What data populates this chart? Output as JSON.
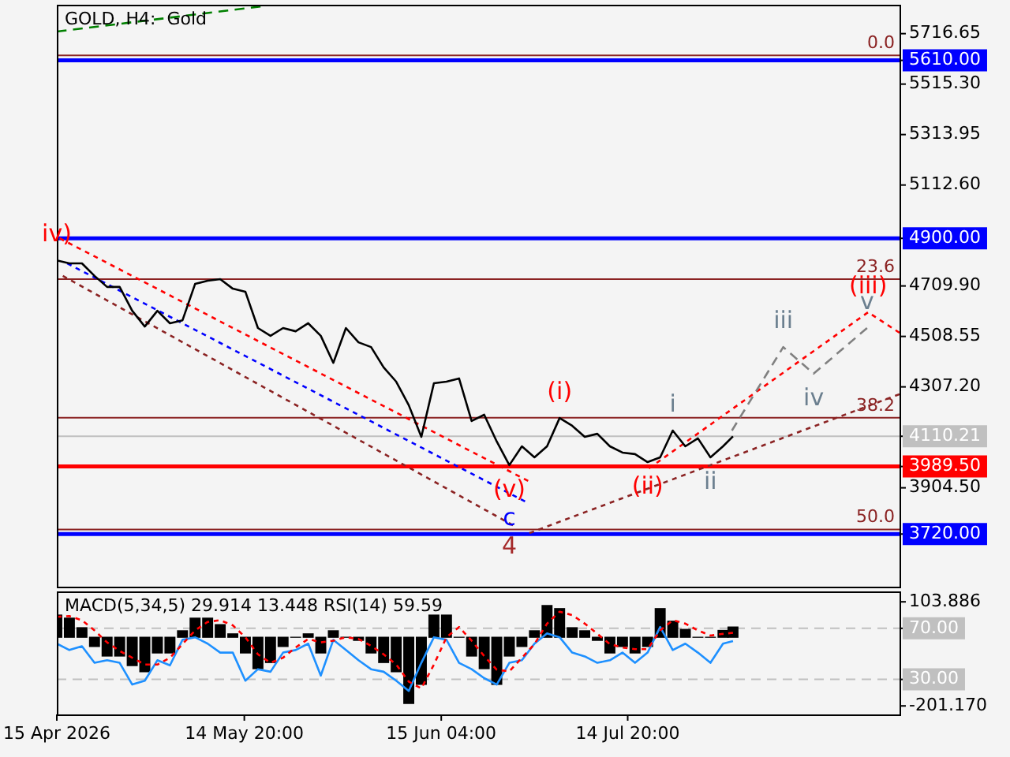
{
  "chart_data": [
    {
      "type": "line",
      "title": "GOLD, H4:  Gold",
      "marker": "none",
      "grid": false,
      "legend": false,
      "tick_labels": "y",
      "xlim": [
        "2026-04-15T00:00",
        "2026-08-27T02:00"
      ],
      "ylim": [
        3510,
        5832
      ],
      "yticks": [
        5716.65,
        {
          "value": 5610,
          "label": "5610.00"
        },
        {
          "value": 5515.3,
          "label": "5515.30"
        },
        5313.95,
        {
          "value": 5112.6,
          "label": "5112.60"
        },
        {
          "value": 4900,
          "label": "4900.00"
        },
        {
          "value": 4709.9,
          "label": "4709.90"
        },
        4508.55,
        {
          "value": 4307.2,
          "label": "4307.20"
        },
        4110.21,
        {
          "value": 3989.5,
          "label": "3989.50"
        },
        {
          "value": 3904.5,
          "label": "3904.50"
        },
        {
          "value": 3720,
          "label": "3720.00"
        }
      ],
      "x": [
        "2026-04-15",
        "2026-04-17",
        "2026-04-19",
        "2026-04-21",
        "2026-04-23",
        "2026-04-25",
        "2026-04-27",
        "2026-04-29",
        "2026-05-01",
        "2026-05-03",
        "2026-05-05",
        "2026-05-07",
        "2026-05-09",
        "2026-05-11",
        "2026-05-13",
        "2026-05-15",
        "2026-05-17",
        "2026-05-19",
        "2026-05-21",
        "2026-05-23",
        "2026-05-25",
        "2026-05-27",
        "2026-05-29",
        "2026-05-31",
        "2026-06-02",
        "2026-06-04",
        "2026-06-06",
        "2026-06-08",
        "2026-06-10",
        "2026-06-12",
        "2026-06-14",
        "2026-06-16",
        "2026-06-18",
        "2026-06-20",
        "2026-06-22",
        "2026-06-24",
        "2026-06-26",
        "2026-06-28",
        "2026-06-30",
        "2026-07-02",
        "2026-07-04",
        "2026-07-06",
        "2026-07-08",
        "2026-07-10",
        "2026-07-12",
        "2026-07-14",
        "2026-07-16",
        "2026-07-18",
        "2026-07-20",
        "2026-07-22",
        "2026-07-24",
        "2026-07-26",
        "2026-07-28",
        "2026-07-30",
        "2026-07-31T14:00"
      ],
      "series": [
        {
          "color": "#000000",
          "values": [
            4812,
            4800,
            4800,
            4750,
            4706,
            4706,
            4611,
            4548,
            4611,
            4561,
            4573,
            4718,
            4731,
            4737,
            4699,
            4687,
            4542,
            4511,
            4542,
            4529,
            4561,
            4511,
            4403,
            4542,
            4485,
            4466,
            4385,
            4328,
            4234,
            4108,
            4322,
            4328,
            4341,
            4171,
            4196,
            4089,
            3995,
            4070,
            4026,
            4070,
            4183,
            4152,
            4108,
            4120,
            4070,
            4045,
            4039,
            4007,
            4026,
            4133,
            4070,
            4102,
            4026,
            4070,
            4110
          ]
        },
        {
          "color": "#808080",
          "line_style": "dashed",
          "x": [
            "2026-07-31T10:00",
            "2026-08-08T14:00",
            "2026-08-13T10:00",
            "2026-08-21T22:00"
          ],
          "values": [
            4133,
            4466,
            4360,
            4542
          ]
        },
        {
          "color": "#ff0000",
          "line_style": "dotted",
          "x": [
            "2026-07-18T05:00",
            "2026-08-22T02:00",
            "2026-08-27T02:00"
          ],
          "values": [
            3982,
            4605,
            4523
          ]
        },
        {
          "color": "#ff0000",
          "line_style": "dotted",
          "x": [
            "2026-04-15T11:00",
            "2026-06-29T00:00"
          ],
          "values": [
            4900,
            3932
          ]
        },
        {
          "color": "#0000ff",
          "line_style": "dotted",
          "x": [
            "2026-04-16T16:00",
            "2026-06-28T12:00"
          ],
          "values": [
            4800,
            3850
          ]
        },
        {
          "color": "#8b2323",
          "line_style": "dotted",
          "x": [
            "2026-04-15T23:00",
            "2026-06-26T14:00"
          ],
          "values": [
            4750,
            3755
          ]
        },
        {
          "color": "#008000",
          "line_style": "dashed",
          "x": [
            "2026-04-15T00:00",
            "2026-05-17T10:00"
          ],
          "values": [
            5725,
            5825
          ]
        },
        {
          "color": "#8b2323",
          "line_style": "dotted",
          "x": [
            "2026-06-29T05:00",
            "2026-08-27T02:00"
          ],
          "values": [
            3724,
            4278
          ]
        }
      ],
      "ref_lines": [
        {
          "axis": "y",
          "value": 5610,
          "color": "#0000ff"
        },
        {
          "axis": "y",
          "value": 4900,
          "color": "#0000ff"
        },
        {
          "axis": "y",
          "value": 3720,
          "color": "#0000ff"
        },
        {
          "axis": "y",
          "value": 3989.5,
          "color": "#ff0000"
        },
        {
          "axis": "y",
          "value": 4110.21,
          "color": "#c0c0c0",
          "line_style": "solid"
        },
        {
          "axis": "y",
          "value": 5630,
          "color": "#8b2323",
          "line_style": "solid"
        },
        {
          "axis": "y",
          "value": 4737,
          "color": "#8b2323",
          "line_style": "solid"
        },
        {
          "axis": "y",
          "value": 4184,
          "color": "#8b2323",
          "line_style": "solid"
        },
        {
          "axis": "y",
          "value": 3738,
          "color": "#8b2323",
          "line_style": "solid"
        }
      ],
      "annotations": [
        {
          "text": "0.0",
          "y": 5630
        },
        {
          "text": "23.6",
          "y": 4737
        },
        {
          "text": "38.2",
          "y": 4184
        },
        {
          "text": "50.0",
          "y": 3738
        },
        {
          "text": "iv)",
          "x": "2026-04-15",
          "y": 4812
        },
        {
          "text": "(i)",
          "x": "2026-07-04",
          "y": 4183
        },
        {
          "text": "(ii)",
          "x": "2026-07-18",
          "y": 4007
        },
        {
          "text": "(iii)",
          "x": "2026-08-22T02:00",
          "y": 4605
        },
        {
          "text": "(v)",
          "x": "2026-06-26",
          "y": 3995
        },
        {
          "text": "c",
          "x": "2026-06-26",
          "y": 3995
        },
        {
          "text": "4",
          "x": "2026-06-26",
          "y": 3995
        },
        {
          "text": "i",
          "x": "2026-07-22",
          "y": 4133
        },
        {
          "text": "ii",
          "x": "2026-07-28",
          "y": 4026
        },
        {
          "text": "iii",
          "x": "2026-08-08T14:00",
          "y": 4466
        },
        {
          "text": "iv",
          "x": "2026-08-13T10:00",
          "y": 4360
        },
        {
          "text": "v",
          "x": "2026-08-21T22:00",
          "y": 4542
        }
      ]
    },
    {
      "type": "bar",
      "title": "MACD(5,34,5) 29.914 13.448 RSI(14) 59.59",
      "marker": "none",
      "grid": false,
      "legend": false,
      "xlim": [
        "2026-04-15T00:00",
        "2026-08-27T02:00"
      ],
      "xticks": [
        {
          "value": "2026-04-15T00:00",
          "label": "15 Apr 2026"
        },
        {
          "value": "2026-05-14T20:00",
          "label": "14 May 20:00"
        },
        {
          "value": "2026-06-15T04:00",
          "label": "15 Jun 04:00"
        },
        {
          "value": "2026-07-14T20:00",
          "label": "14 Jul 20:00"
        }
      ],
      "ylim": [
        -226.1,
        134.4
      ],
      "yticks": [
        103.886,
        {
          "value": -201.17,
          "label": "-201.170"
        }
      ],
      "y2lim": [
        2.6,
        98.9
      ],
      "y2ticks": [
        {
          "value": 70,
          "label": "70.00"
        },
        {
          "value": 30,
          "label": "30.00"
        }
      ],
      "x": [
        "2026-04-15",
        "2026-04-17",
        "2026-04-19",
        "2026-04-21",
        "2026-04-23",
        "2026-04-25",
        "2026-04-27",
        "2026-04-29",
        "2026-05-01",
        "2026-05-03",
        "2026-05-05",
        "2026-05-07",
        "2026-05-09",
        "2026-05-11",
        "2026-05-13",
        "2026-05-15",
        "2026-05-17",
        "2026-05-19",
        "2026-05-21",
        "2026-05-23",
        "2026-05-25",
        "2026-05-27",
        "2026-05-29",
        "2026-05-31",
        "2026-06-02",
        "2026-06-04",
        "2026-06-06",
        "2026-06-08",
        "2026-06-10",
        "2026-06-12",
        "2026-06-14",
        "2026-06-16",
        "2026-06-18",
        "2026-06-20",
        "2026-06-22",
        "2026-06-24",
        "2026-06-26",
        "2026-06-28",
        "2026-06-30",
        "2026-07-02",
        "2026-07-04",
        "2026-07-06",
        "2026-07-08",
        "2026-07-10",
        "2026-07-12",
        "2026-07-14",
        "2026-07-16",
        "2026-07-18",
        "2026-07-20",
        "2026-07-22",
        "2026-07-24",
        "2026-07-26",
        "2026-07-28",
        "2026-07-30",
        "2026-07-31T14:00"
      ],
      "series": [
        {
          "color": "#000000",
          "values": [
            65,
            56,
            28,
            -27,
            -55,
            -55,
            -83,
            -101,
            -46,
            -46,
            19,
            56,
            56,
            37,
            10,
            -46,
            -92,
            -74,
            -27,
            0,
            10,
            -46,
            19,
            0,
            -9,
            -46,
            -74,
            -101,
            -194,
            -138,
            65,
            65,
            0,
            -55,
            -92,
            -138,
            -55,
            -27,
            19,
            93,
            84,
            28,
            19,
            -9,
            -46,
            -27,
            -46,
            -27,
            84,
            47,
            23,
            0,
            0,
            20,
            30
          ]
        },
        {
          "type": "line",
          "color": "#ff0000",
          "line_style": "dotted",
          "values": [
            60,
            62,
            50,
            20,
            -15,
            -40,
            -60,
            -80,
            -80,
            -60,
            -20,
            20,
            45,
            50,
            35,
            0,
            -50,
            -75,
            -60,
            -30,
            -5,
            -15,
            -10,
            0,
            -5,
            -25,
            -50,
            -80,
            -130,
            -150,
            -80,
            0,
            30,
            -10,
            -55,
            -95,
            -100,
            -60,
            -20,
            40,
            75,
            65,
            40,
            10,
            -20,
            -30,
            -35,
            -35,
            20,
            50,
            40,
            20,
            5,
            10,
            13
          ]
        },
        {
          "type": "line",
          "axis": "y2",
          "color": "#1e90ff",
          "values": [
            58,
            53,
            56,
            43,
            45,
            43,
            26,
            29,
            45,
            41,
            61,
            63,
            58,
            51,
            51,
            29,
            38,
            36,
            51,
            53,
            58,
            33,
            61,
            53,
            45,
            38,
            36,
            29,
            21,
            43,
            63,
            61,
            43,
            38,
            31,
            26,
            43,
            45,
            58,
            66,
            63,
            51,
            48,
            43,
            45,
            51,
            43,
            51,
            71,
            53,
            58,
            51,
            43,
            58,
            60
          ]
        }
      ],
      "ref_lines": [
        {
          "axis": "y2",
          "value": 70,
          "color": "#c0c0c0",
          "line_style": "dashed"
        },
        {
          "axis": "y2",
          "value": 30,
          "color": "#c0c0c0",
          "line_style": "dashed"
        }
      ]
    }
  ]
}
